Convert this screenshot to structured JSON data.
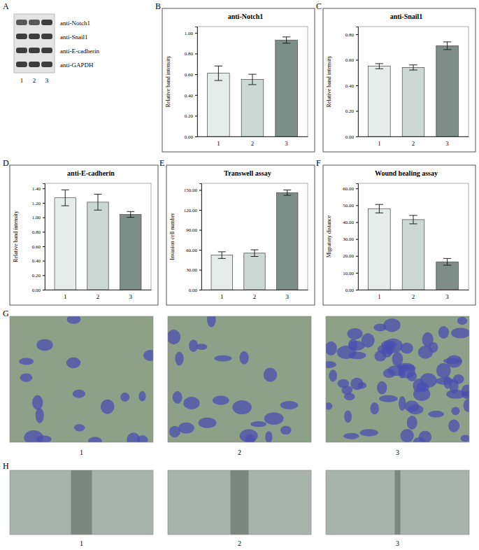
{
  "chart_data": [
    {
      "panel_label": "B",
      "type": "bar",
      "title": "anti-Notch1",
      "y_label": "Relative band intensity",
      "categories": [
        "1",
        "2",
        "3"
      ],
      "values": [
        0.61,
        0.55,
        0.93
      ],
      "errors": [
        0.07,
        0.05,
        0.03
      ],
      "colors": [
        "#e6ece9",
        "#cbd8d3",
        "#7d8d88"
      ],
      "ylim": [
        0,
        1.06
      ],
      "yticks": [
        {
          "value": 0,
          "label": "0.00"
        },
        {
          "value": 0.2,
          "label": "0.20"
        },
        {
          "value": 0.4,
          "label": "0.40"
        },
        {
          "value": 0.6,
          "label": "0.60"
        },
        {
          "value": 0.8,
          "label": "0.80"
        },
        {
          "value": 1,
          "label": "1.00"
        }
      ],
      "grid": false
    },
    {
      "panel_label": "C",
      "type": "bar",
      "title": "anti-Snail1",
      "y_label": "Relative band intensity",
      "categories": [
        "1",
        "2",
        "3"
      ],
      "values": [
        0.55,
        0.54,
        0.71
      ],
      "errors": [
        0.02,
        0.02,
        0.03
      ],
      "colors": [
        "#e6ece9",
        "#cbd8d3",
        "#7d8d88"
      ],
      "ylim": [
        0,
        0.86
      ],
      "yticks": [
        {
          "value": 0,
          "label": "0.00"
        },
        {
          "value": 0.2,
          "label": "0.20"
        },
        {
          "value": 0.4,
          "label": "0.40"
        },
        {
          "value": 0.6,
          "label": "0.60"
        },
        {
          "value": 0.8,
          "label": "0.80"
        }
      ],
      "grid": false
    },
    {
      "panel_label": "D",
      "type": "bar",
      "title": "anti-E-cadherin",
      "y_label": "Relative band intensity",
      "categories": [
        "1",
        "2",
        "3"
      ],
      "values": [
        1.27,
        1.21,
        1.04
      ],
      "errors": [
        0.11,
        0.11,
        0.04
      ],
      "colors": [
        "#e6ece9",
        "#cbd8d3",
        "#7d8d88"
      ],
      "ylim": [
        0,
        1.47
      ],
      "yticks": [
        {
          "value": 0,
          "label": "0.00"
        },
        {
          "value": 0.2,
          "label": "0.20"
        },
        {
          "value": 0.4,
          "label": "0.40"
        },
        {
          "value": 0.6,
          "label": "0.60"
        },
        {
          "value": 0.8,
          "label": "0.80"
        },
        {
          "value": 1,
          "label": "1.00"
        },
        {
          "value": 1.2,
          "label": "1.20"
        },
        {
          "value": 1.4,
          "label": "1.40"
        }
      ],
      "grid": false
    },
    {
      "panel_label": "E",
      "type": "bar",
      "title": "Transwell assay",
      "y_label": "Invasion cell number",
      "categories": [
        "1",
        "2",
        "3"
      ],
      "values": [
        52,
        55,
        146
      ],
      "errors": [
        5,
        5,
        4
      ],
      "colors": [
        "#e6ece9",
        "#cbd8d3",
        "#7d8d88"
      ],
      "ylim": [
        0,
        160
      ],
      "yticks": [
        {
          "value": 0,
          "label": "0.00"
        },
        {
          "value": 30,
          "label": "30.00"
        },
        {
          "value": 60,
          "label": "60.00"
        },
        {
          "value": 90,
          "label": "90.00"
        },
        {
          "value": 120,
          "label": "120.00"
        },
        {
          "value": 150,
          "label": "150.00"
        }
      ],
      "grid": false
    },
    {
      "panel_label": "F",
      "type": "bar",
      "title": "Wound healing assay",
      "y_label": "Migratory distance",
      "categories": [
        "1",
        "2",
        "3"
      ],
      "values": [
        48,
        41.5,
        16.5
      ],
      "errors": [
        2.5,
        2.5,
        2
      ],
      "colors": [
        "#e6ece9",
        "#cbd8d3",
        "#7d8d88"
      ],
      "ylim": [
        0,
        63
      ],
      "yticks": [
        {
          "value": 0,
          "label": "0.00"
        },
        {
          "value": 10,
          "label": "10.00"
        },
        {
          "value": 20,
          "label": "20.00"
        },
        {
          "value": 30,
          "label": "30.00"
        },
        {
          "value": 40,
          "label": "40.00"
        },
        {
          "value": 50,
          "label": "50.00"
        },
        {
          "value": 60,
          "label": "60.00"
        }
      ],
      "grid": false
    }
  ],
  "blot": {
    "panel_label": "A",
    "antibodies": [
      "anti-Notch1",
      "anti-Snail1",
      "anti-E-cadherin",
      "anti-GAPDH"
    ],
    "lanes": [
      "1",
      "2",
      "3"
    ]
  },
  "images": [
    {
      "panel_label": "G",
      "lanes": [
        "1",
        "2",
        "3"
      ]
    },
    {
      "panel_label": "H",
      "lanes": [
        "1",
        "2",
        "3"
      ]
    }
  ]
}
